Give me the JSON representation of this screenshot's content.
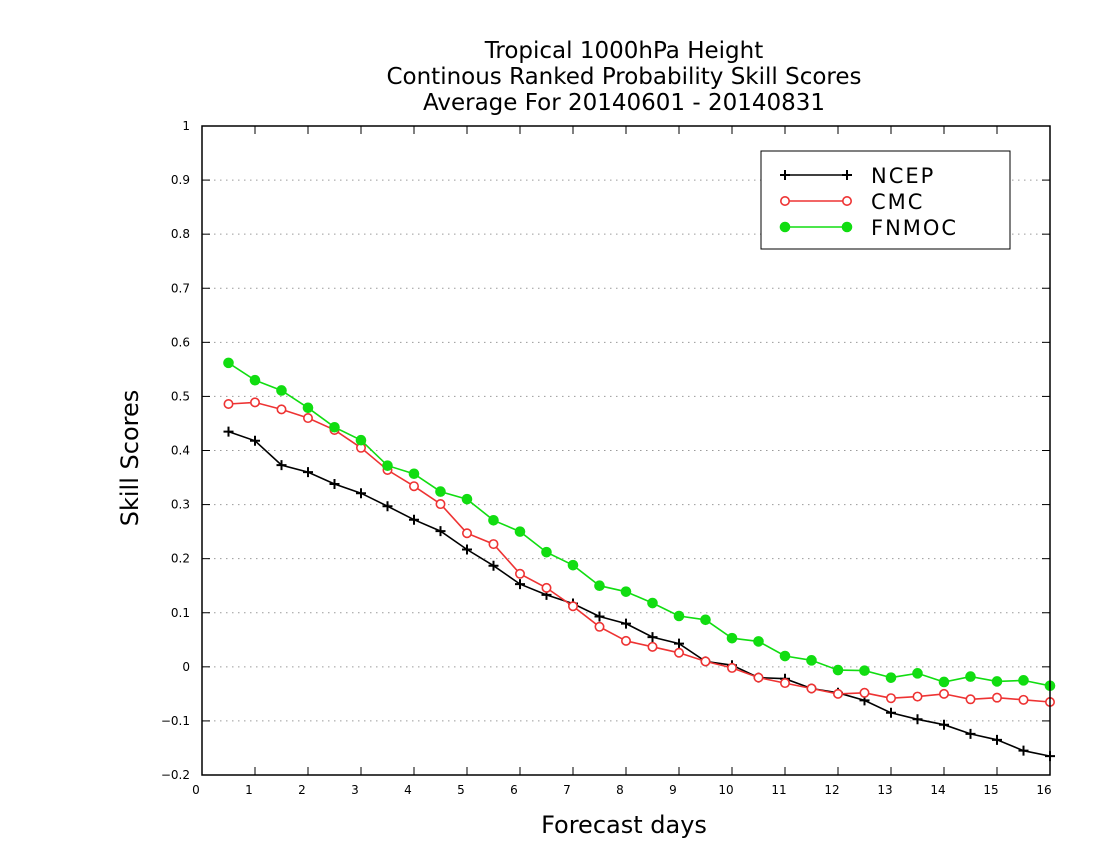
{
  "chart_data": {
    "type": "line",
    "title_lines": [
      "Tropical 1000hPa Height",
      "Continous Ranked Probability Skill Scores",
      "Average For 20140601 - 20140831"
    ],
    "xlabel": "Forecast days",
    "ylabel": "Skill Scores",
    "xlim": [
      0,
      16
    ],
    "ylim": [
      -0.2,
      1
    ],
    "xticks": [
      0,
      1,
      2,
      3,
      4,
      5,
      6,
      7,
      8,
      9,
      10,
      11,
      12,
      13,
      14,
      15,
      16
    ],
    "yticks": [
      -0.2,
      -0.1,
      0,
      0.1,
      0.2,
      0.3,
      0.4,
      0.5,
      0.6,
      0.7,
      0.8,
      0.9,
      1
    ],
    "ytick_labels": [
      "−0.2",
      "−0.1",
      "0",
      "0.1",
      "0.2",
      "0.3",
      "0.4",
      "0.5",
      "0.6",
      "0.7",
      "0.8",
      "0.9",
      "1"
    ],
    "grid": "horizontal dotted",
    "legend_position": "top-right",
    "x": [
      0.5,
      1,
      1.5,
      2,
      2.5,
      3,
      3.5,
      4,
      4.5,
      5,
      5.5,
      6,
      6.5,
      7,
      7.5,
      8,
      8.5,
      9,
      9.5,
      10,
      10.5,
      11,
      11.5,
      12,
      12.5,
      13,
      13.5,
      14,
      14.5,
      15,
      15.5,
      16
    ],
    "series": [
      {
        "name": "NCEP",
        "color": "#000000",
        "marker": "plus",
        "values": [
          0.435,
          0.418,
          0.373,
          0.36,
          0.338,
          0.321,
          0.297,
          0.272,
          0.251,
          0.217,
          0.187,
          0.153,
          0.133,
          0.117,
          0.093,
          0.08,
          0.055,
          0.043,
          0.01,
          0.003,
          -0.02,
          -0.022,
          -0.04,
          -0.048,
          -0.062,
          -0.085,
          -0.097,
          -0.107,
          -0.124,
          -0.135,
          -0.155,
          -0.165
        ]
      },
      {
        "name": "CMC",
        "color": "#ee3333",
        "marker": "open-circle",
        "values": [
          0.486,
          0.489,
          0.476,
          0.46,
          0.438,
          0.405,
          0.364,
          0.334,
          0.301,
          0.247,
          0.227,
          0.172,
          0.146,
          0.112,
          0.074,
          0.048,
          0.037,
          0.026,
          0.01,
          -0.002,
          -0.02,
          -0.03,
          -0.04,
          -0.05,
          -0.048,
          -0.058,
          -0.055,
          -0.05,
          -0.06,
          -0.057,
          -0.061,
          -0.065
        ]
      },
      {
        "name": "FNMOC",
        "color": "#11dd11",
        "marker": "filled-circle",
        "values": [
          0.562,
          0.53,
          0.511,
          0.479,
          0.443,
          0.419,
          0.372,
          0.357,
          0.324,
          0.31,
          0.271,
          0.25,
          0.212,
          0.188,
          0.15,
          0.139,
          0.118,
          0.094,
          0.087,
          0.053,
          0.047,
          0.02,
          0.012,
          -0.006,
          -0.007,
          -0.02,
          -0.012,
          -0.028,
          -0.018,
          -0.027,
          -0.025,
          -0.035
        ]
      }
    ]
  }
}
